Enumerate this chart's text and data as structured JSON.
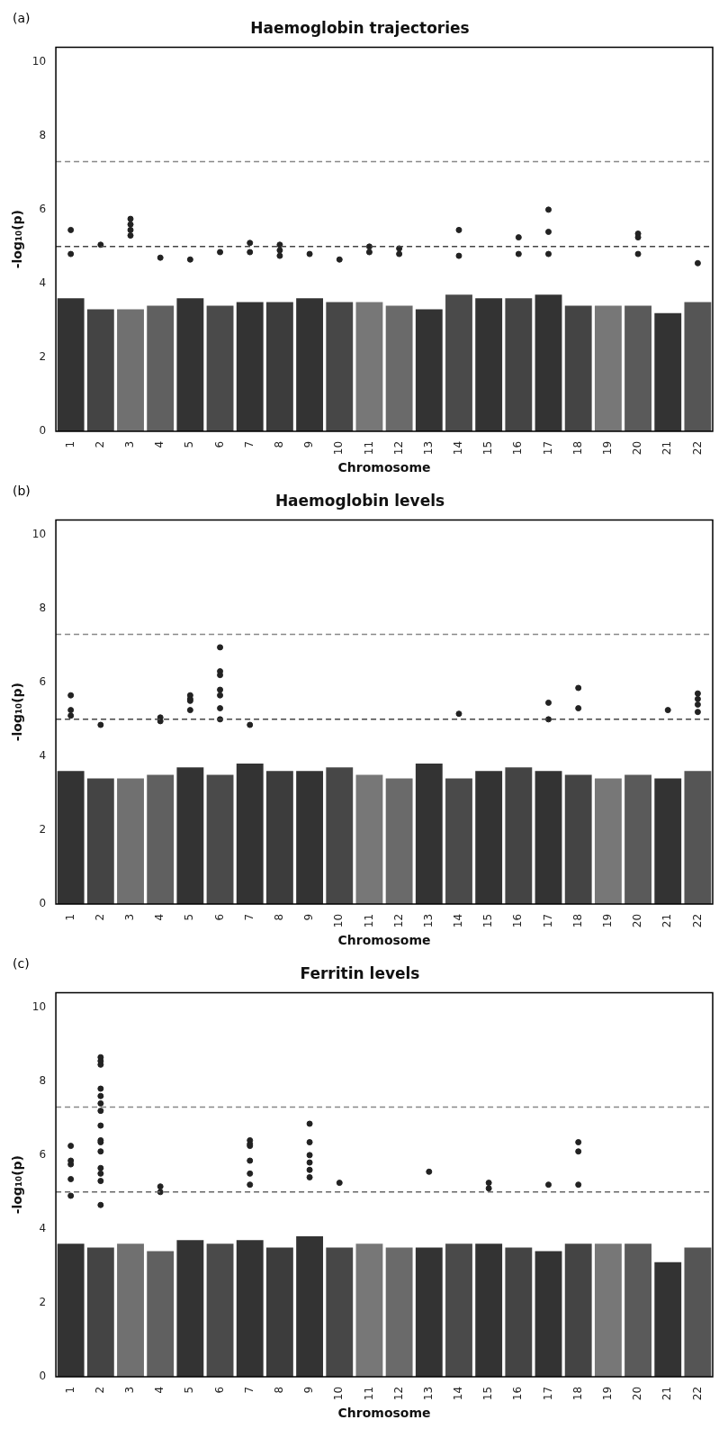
{
  "chart_data": [
    {
      "type": "bar",
      "title": "Haemoglobin trajectories",
      "xlabel": "Chromosome",
      "ylabel": "-log₁₀(p)",
      "annotations": [
        "(a)"
      ],
      "categories": [
        "1",
        "2",
        "3",
        "4",
        "5",
        "6",
        "7",
        "8",
        "9",
        "10",
        "11",
        "12",
        "13",
        "14",
        "15",
        "16",
        "17",
        "18",
        "19",
        "20",
        "21",
        "22"
      ],
      "ylim": [
        0,
        10.4
      ],
      "yticks": [
        0,
        2,
        4,
        6,
        8,
        10
      ],
      "grid": false,
      "legend": false,
      "ref_lines": [
        {
          "axis": "y",
          "value": 7.3,
          "color": "#888888",
          "line_style": "dashed"
        },
        {
          "axis": "y",
          "value": 5,
          "color": "#444444",
          "line_style": "dashed"
        }
      ],
      "series": [
        {
          "colors": [
            "#333333",
            "#444444",
            "#707070",
            "#606060",
            "#333333",
            "#4a4a4a",
            "#333333",
            "#3c3c3c",
            "#333333",
            "#474747",
            "#777777",
            "#6a6a6a",
            "#333333",
            "#4a4a4a",
            "#333333",
            "#444444",
            "#333333",
            "#444444",
            "#777777",
            "#5a5a5a",
            "#333333",
            "#555555"
          ],
          "values": [
            3.6,
            3.3,
            3.3,
            3.4,
            3.6,
            3.4,
            3.5,
            3.5,
            3.6,
            3.5,
            3.5,
            3.4,
            3.3,
            3.7,
            3.6,
            3.6,
            3.7,
            3.4,
            3.4,
            3.4,
            3.2,
            3.5
          ]
        },
        {
          "type": "scatter",
          "marker": "circle",
          "color": "#222222",
          "x": [
            "1",
            "1",
            "2",
            "3",
            "3",
            "3",
            "3",
            "4",
            "5",
            "6",
            "7",
            "7",
            "8",
            "8",
            "8",
            "9",
            "10",
            "11",
            "11",
            "12",
            "12",
            "14",
            "14",
            "16",
            "16",
            "17",
            "17",
            "17",
            "20",
            "20",
            "20",
            "22"
          ],
          "values": [
            5.45,
            4.8,
            5.05,
            5.75,
            5.6,
            5.45,
            5.3,
            4.7,
            4.65,
            4.85,
            5.1,
            4.85,
            5.05,
            4.9,
            4.75,
            4.8,
            4.65,
            5.0,
            4.85,
            4.8,
            4.95,
            5.45,
            4.75,
            5.25,
            4.8,
            6.0,
            5.4,
            4.8,
            5.35,
            5.25,
            4.8,
            4.55
          ]
        }
      ]
    },
    {
      "type": "bar",
      "title": "Haemoglobin levels",
      "xlabel": "Chromosome",
      "ylabel": "-log₁₀(p)",
      "annotations": [
        "(b)"
      ],
      "categories": [
        "1",
        "2",
        "3",
        "4",
        "5",
        "6",
        "7",
        "8",
        "9",
        "10",
        "11",
        "12",
        "13",
        "14",
        "15",
        "16",
        "17",
        "18",
        "19",
        "20",
        "21",
        "22"
      ],
      "ylim": [
        0,
        10.4
      ],
      "yticks": [
        0,
        2,
        4,
        6,
        8,
        10
      ],
      "grid": false,
      "legend": false,
      "ref_lines": [
        {
          "axis": "y",
          "value": 7.3,
          "color": "#888888",
          "line_style": "dashed"
        },
        {
          "axis": "y",
          "value": 5,
          "color": "#444444",
          "line_style": "dashed"
        }
      ],
      "series": [
        {
          "colors": [
            "#333333",
            "#444444",
            "#707070",
            "#606060",
            "#333333",
            "#4a4a4a",
            "#333333",
            "#3c3c3c",
            "#333333",
            "#474747",
            "#777777",
            "#6a6a6a",
            "#333333",
            "#4a4a4a",
            "#333333",
            "#444444",
            "#333333",
            "#444444",
            "#777777",
            "#5a5a5a",
            "#333333",
            "#555555"
          ],
          "values": [
            3.6,
            3.4,
            3.4,
            3.5,
            3.7,
            3.5,
            3.8,
            3.6,
            3.6,
            3.7,
            3.5,
            3.4,
            3.8,
            3.4,
            3.6,
            3.7,
            3.6,
            3.5,
            3.4,
            3.5,
            3.4,
            3.6
          ]
        },
        {
          "type": "scatter",
          "marker": "circle",
          "color": "#222222",
          "x": [
            "1",
            "1",
            "1",
            "2",
            "4",
            "4",
            "5",
            "5",
            "5",
            "5",
            "6",
            "6",
            "6",
            "6",
            "6",
            "6",
            "6",
            "7",
            "14",
            "17",
            "17",
            "18",
            "18",
            "21",
            "22",
            "22",
            "22",
            "22"
          ],
          "values": [
            5.65,
            5.25,
            5.1,
            4.85,
            5.05,
            4.95,
            5.5,
            5.25,
            5.65,
            5.55,
            6.95,
            5.65,
            6.3,
            6.2,
            5.8,
            5.3,
            5.0,
            4.85,
            5.15,
            5.45,
            5.0,
            5.85,
            5.3,
            5.25,
            5.7,
            5.55,
            5.4,
            5.2
          ]
        }
      ]
    },
    {
      "type": "bar",
      "title": "Ferritin levels",
      "xlabel": "Chromosome",
      "ylabel": "-log₁₀(p)",
      "annotations": [
        "(c)"
      ],
      "categories": [
        "1",
        "2",
        "3",
        "4",
        "5",
        "6",
        "7",
        "8",
        "9",
        "10",
        "11",
        "12",
        "13",
        "14",
        "15",
        "16",
        "17",
        "18",
        "19",
        "20",
        "21",
        "22"
      ],
      "ylim": [
        0,
        10.4
      ],
      "yticks": [
        0,
        2,
        4,
        6,
        8,
        10
      ],
      "grid": false,
      "legend": false,
      "ref_lines": [
        {
          "axis": "y",
          "value": 7.3,
          "color": "#888888",
          "line_style": "dashed"
        },
        {
          "axis": "y",
          "value": 5,
          "color": "#666666",
          "line_style": "dashed"
        }
      ],
      "series": [
        {
          "colors": [
            "#333333",
            "#444444",
            "#707070",
            "#606060",
            "#333333",
            "#4a4a4a",
            "#333333",
            "#3c3c3c",
            "#333333",
            "#474747",
            "#777777",
            "#6a6a6a",
            "#333333",
            "#4a4a4a",
            "#333333",
            "#444444",
            "#333333",
            "#444444",
            "#777777",
            "#5a5a5a",
            "#333333",
            "#555555"
          ],
          "values": [
            3.6,
            3.5,
            3.6,
            3.4,
            3.7,
            3.6,
            3.7,
            3.5,
            3.8,
            3.5,
            3.6,
            3.5,
            3.5,
            3.6,
            3.6,
            3.5,
            3.4,
            3.6,
            3.6,
            3.6,
            3.1,
            3.5
          ]
        },
        {
          "type": "scatter",
          "marker": "circle",
          "color": "#222222",
          "x": [
            "1",
            "1",
            "1",
            "1",
            "1",
            "2",
            "2",
            "2",
            "2",
            "2",
            "2",
            "2",
            "2",
            "2",
            "2",
            "2",
            "2",
            "2",
            "2",
            "2",
            "4",
            "4",
            "7",
            "7",
            "7",
            "7",
            "7",
            "7",
            "9",
            "9",
            "9",
            "9",
            "9",
            "9",
            "10",
            "13",
            "15",
            "15",
            "17",
            "18",
            "18",
            "18"
          ],
          "values": [
            6.25,
            5.85,
            5.75,
            5.35,
            4.9,
            6.35,
            5.3,
            8.65,
            8.55,
            8.45,
            7.8,
            7.6,
            7.4,
            7.2,
            6.8,
            6.4,
            6.1,
            5.5,
            5.65,
            4.65,
            5.15,
            5.0,
            6.25,
            5.5,
            6.4,
            6.3,
            5.85,
            5.2,
            6.85,
            6.35,
            6.0,
            5.8,
            5.6,
            5.4,
            5.25,
            5.55,
            5.25,
            5.1,
            5.2,
            6.35,
            6.1,
            5.2
          ]
        }
      ]
    }
  ]
}
